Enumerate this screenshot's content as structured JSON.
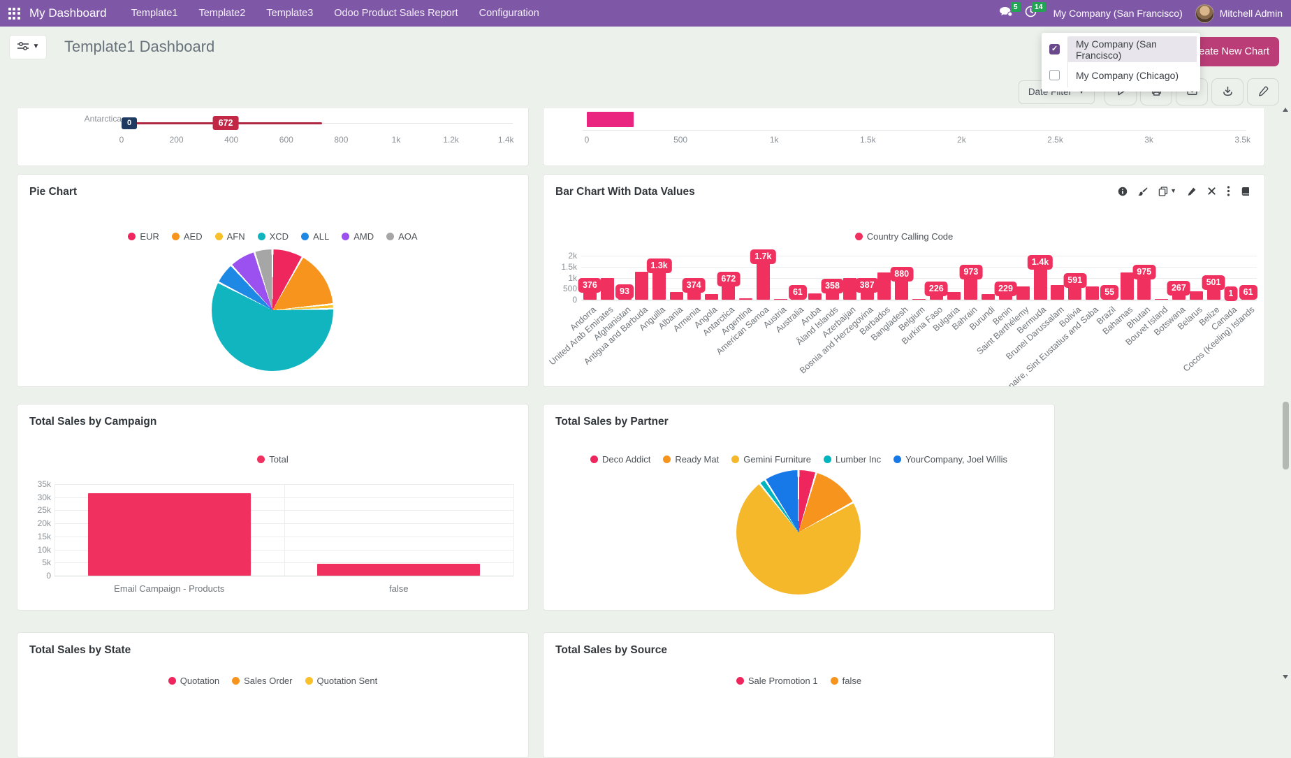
{
  "navbar": {
    "app_title": "My Dashboard",
    "menu_items": [
      "Template1",
      "Template2",
      "Template3",
      "Odoo Product Sales Report",
      "Configuration"
    ],
    "messages_badge": "5",
    "activities_badge": "14",
    "company_label": "My Company (San Francisco)",
    "user_name": "Mitchell Admin"
  },
  "control_panel": {
    "title": "Template1 Dashboard",
    "create_button_label": "Create New Chart"
  },
  "company_dropdown": {
    "options": [
      {
        "label": "My Company (San Francisco)",
        "checked": true
      },
      {
        "label": "My Company (Chicago)",
        "checked": false
      }
    ]
  },
  "toolbar": {
    "date_filter_label": "Date Filter",
    "icon_buttons": [
      "play",
      "printer",
      "envelope",
      "download",
      "pencil"
    ]
  },
  "card_actions": [
    "info",
    "brush",
    "copy",
    "pencil",
    "close",
    "kebab",
    "book"
  ],
  "colors": {
    "navbar_purple": "#7e58a7",
    "accent_pink": "#f0305e",
    "magenta_bar": "#e92580",
    "create_button": "#bb3d77",
    "badge_green": "#23a455",
    "page_background": "#edf1ec"
  },
  "chart_data": [
    {
      "id": "country_slider_partial",
      "type": "bar",
      "note": "bottom of a horizontal chart, only last row visible",
      "visible_row_label": "Antarctica",
      "marker_low": "0",
      "marker_value": "672",
      "x_ticks": [
        "0",
        "200",
        "400",
        "600",
        "800",
        "1k",
        "1.2k",
        "1.4k"
      ],
      "xlim": [
        0,
        1400
      ]
    },
    {
      "id": "partial_horizontal_bar",
      "type": "bar",
      "note": "bottom of a horizontal bar chart, one pink bar visible",
      "visible_bar_value": 250,
      "x_ticks": [
        "0",
        "500",
        "1k",
        "1.5k",
        "2k",
        "2.5k",
        "3k",
        "3.5k"
      ],
      "xlim": [
        0,
        3500
      ]
    },
    {
      "id": "pie_currency",
      "title": "Pie Chart",
      "type": "pie",
      "legend_position": "top",
      "slices": [
        {
          "label": "EUR",
          "percent": 8.2,
          "color": "#ef265d"
        },
        {
          "label": "AED",
          "percent": 15.2,
          "color": "#f7941e"
        },
        {
          "label": "AFN",
          "percent": 1.2,
          "color": "#f8c12c"
        },
        {
          "label": "XCD",
          "percent": 58.0,
          "color": "#10b5c0"
        },
        {
          "label": "ALL",
          "percent": 5.6,
          "color": "#1e88e5"
        },
        {
          "label": "AMD",
          "percent": 7.0,
          "color": "#9b50f0"
        },
        {
          "label": "AOA",
          "percent": 4.8,
          "color": "#a6a6a6"
        }
      ]
    },
    {
      "id": "calling_codes",
      "title": "Bar Chart With Data Values",
      "type": "bar",
      "series_name": "Country Calling Code",
      "series_color": "#f0305e",
      "y_ticks": [
        "2k",
        "1.5k",
        "1k",
        "500",
        "0"
      ],
      "ylim": [
        0,
        2000
      ],
      "bars": [
        {
          "label": "Andorra",
          "value": 376,
          "badge": "376"
        },
        {
          "label": "United Arab Emirates",
          "value": 971
        },
        {
          "label": "Afghanistan",
          "value": 93,
          "badge": "93"
        },
        {
          "label": "Antigua and Barbuda",
          "value": 1268
        },
        {
          "label": "Anguilla",
          "value": 1264,
          "badge": "1.3k"
        },
        {
          "label": "Albania",
          "value": 355
        },
        {
          "label": "Armenia",
          "value": 374,
          "badge": "374"
        },
        {
          "label": "Angola",
          "value": 244
        },
        {
          "label": "Antarctica",
          "value": 672,
          "badge": "672"
        },
        {
          "label": "Argentina",
          "value": 54
        },
        {
          "label": "American Samoa",
          "value": 1684,
          "badge": "1.7k"
        },
        {
          "label": "Austria",
          "value": 43
        },
        {
          "label": "Australia",
          "value": 61,
          "badge": "61"
        },
        {
          "label": "Aruba",
          "value": 297
        },
        {
          "label": "Åland Islands",
          "value": 358,
          "badge": "358"
        },
        {
          "label": "Azerbaijan",
          "value": 994
        },
        {
          "label": "Bosnia and Herzegovina",
          "value": 387,
          "badge": "387"
        },
        {
          "label": "Barbados",
          "value": 1246
        },
        {
          "label": "Bangladesh",
          "value": 880,
          "badge": "880"
        },
        {
          "label": "Belgium",
          "value": 32
        },
        {
          "label": "Burkina Faso",
          "value": 226,
          "badge": "226"
        },
        {
          "label": "Bulgaria",
          "value": 359
        },
        {
          "label": "Bahrain",
          "value": 973,
          "badge": "973"
        },
        {
          "label": "Burundi",
          "value": 257
        },
        {
          "label": "Benin",
          "value": 229,
          "badge": "229"
        },
        {
          "label": "Saint Barthélemy",
          "value": 590
        },
        {
          "label": "Bermuda",
          "value": 1441,
          "badge": "1.4k"
        },
        {
          "label": "Brunei Darussalam",
          "value": 673
        },
        {
          "label": "Bolivia",
          "value": 591,
          "badge": "591"
        },
        {
          "label": "Bonaire, Sint Eustatius and Saba",
          "value": 599
        },
        {
          "label": "Brazil",
          "value": 55,
          "badge": "55"
        },
        {
          "label": "Bahamas",
          "value": 1242
        },
        {
          "label": "Bhutan",
          "value": 975,
          "badge": "975"
        },
        {
          "label": "Bouvet Island",
          "value": 47
        },
        {
          "label": "Botswana",
          "value": 267,
          "badge": "267"
        },
        {
          "label": "Belarus",
          "value": 375
        },
        {
          "label": "Belize",
          "value": 501,
          "badge": "501"
        },
        {
          "label": "Canada",
          "value": 1,
          "badge": "1"
        },
        {
          "label": "Cocos (Keeling) Islands",
          "value": 61,
          "badge": "61"
        }
      ]
    },
    {
      "id": "sales_by_campaign",
      "title": "Total Sales by Campaign",
      "type": "bar",
      "series_name": "Total",
      "series_color": "#f0305e",
      "categories": [
        "Email Campaign - Products",
        "false"
      ],
      "values": [
        31500,
        4500
      ],
      "y_ticks": [
        "35k",
        "30k",
        "25k",
        "20k",
        "15k",
        "10k",
        "5k",
        "0"
      ],
      "ylim": [
        0,
        35000
      ]
    },
    {
      "id": "sales_by_partner",
      "title": "Total Sales by Partner",
      "type": "pie",
      "legend_position": "top",
      "slices": [
        {
          "label": "Deco Addict",
          "percent": 4.6,
          "color": "#ef265d"
        },
        {
          "label": "Ready Mat",
          "percent": 12.4,
          "color": "#f7941e"
        },
        {
          "label": "Gemini Furniture",
          "percent": 72.3,
          "color": "#f5b82a"
        },
        {
          "label": "Lumber Inc",
          "percent": 1.7,
          "color": "#00b5bd"
        },
        {
          "label": "YourCompany, Joel Willis",
          "percent": 9.0,
          "color": "#1779e8"
        }
      ]
    },
    {
      "id": "sales_by_state",
      "title": "Total Sales by State",
      "type": "pie",
      "note": "only title and top of legend visible",
      "slices": [
        {
          "label": "Quotation",
          "color": "#ef265d"
        },
        {
          "label": "Sales Order",
          "color": "#f7941e"
        },
        {
          "label": "Quotation Sent",
          "color": "#f8c12c"
        }
      ]
    },
    {
      "id": "sales_by_source",
      "title": "Total Sales by Source",
      "type": "pie",
      "note": "only title and top of legend visible",
      "slices": [
        {
          "label": "Sale Promotion 1",
          "color": "#ef265d"
        },
        {
          "label": "false",
          "color": "#f7941e"
        }
      ]
    }
  ]
}
